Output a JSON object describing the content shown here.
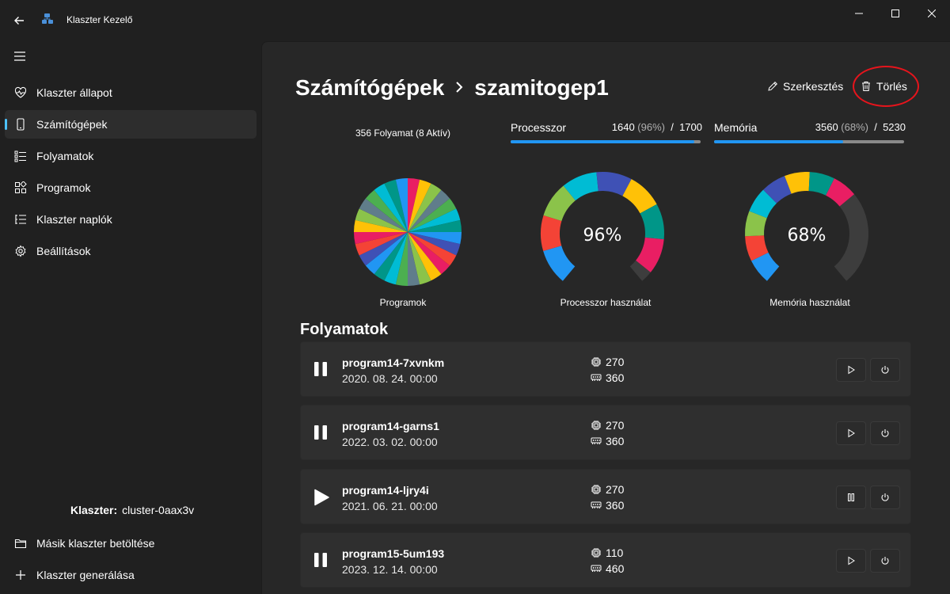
{
  "window": {
    "title": "Klaszter Kezelő"
  },
  "sidebar": {
    "items": [
      {
        "label": "Klaszter állapot",
        "icon": "heart-pulse-icon"
      },
      {
        "label": "Számítógépek",
        "icon": "phone-device-icon",
        "active": true
      },
      {
        "label": "Folyamatok",
        "icon": "list-icon"
      },
      {
        "label": "Programok",
        "icon": "apps-icon"
      },
      {
        "label": "Klaszter naplók",
        "icon": "log-list-icon"
      },
      {
        "label": "Beállítások",
        "icon": "gear-icon"
      }
    ],
    "cluster_label": "Klaszter:",
    "cluster_value": "cluster-0aax3v",
    "footer_items": [
      {
        "label": "Másik klaszter betöltése",
        "icon": "folder-icon"
      },
      {
        "label": "Klaszter generálása",
        "icon": "plus-icon"
      }
    ]
  },
  "header": {
    "breadcrumb_root": "Számítógépek",
    "breadcrumb_current": "szamitogep1",
    "edit_label": "Szerkesztés",
    "delete_label": "Törlés"
  },
  "stats": {
    "process_count": "356 Folyamat (8 Aktív)",
    "cpu": {
      "label": "Processzor",
      "used": "1640",
      "pct": "(96%)",
      "slash": "/",
      "total": "1700",
      "fraction": 0.965
    },
    "mem": {
      "label": "Memória",
      "used": "3560",
      "pct": "(68%)",
      "slash": "/",
      "total": "5230",
      "fraction": 0.68
    }
  },
  "chart_data": [
    {
      "type": "pie",
      "title": "Programok",
      "slices": 28,
      "colors": [
        "#e91e63",
        "#2196f3",
        "#4caf50",
        "#ffc107",
        "#3f51b5",
        "#00bcd4",
        "#8bc34a",
        "#f44336",
        "#009688",
        "#607d8b"
      ]
    },
    {
      "type": "gauge",
      "title": "Processzor használat",
      "value_label": "96%",
      "value": 96,
      "colors": [
        "#2196f3",
        "#f44336",
        "#8bc34a",
        "#00bcd4",
        "#3f51b5",
        "#ffc107",
        "#009688",
        "#e91e63"
      ]
    },
    {
      "type": "gauge",
      "title": "Memória használat",
      "value_label": "68%",
      "value": 68,
      "colors": [
        "#2196f3",
        "#f44336",
        "#8bc34a",
        "#00bcd4",
        "#3f51b5",
        "#ffc107",
        "#009688",
        "#e91e63"
      ]
    }
  ],
  "processes_section": {
    "title": "Folyamatok",
    "items": [
      {
        "name": "program14-7xvnkm",
        "date": "2020. 08. 24. 00:00",
        "cpu": "270",
        "mem": "360",
        "state": "paused"
      },
      {
        "name": "program14-garns1",
        "date": "2022. 03. 02. 00:00",
        "cpu": "270",
        "mem": "360",
        "state": "paused"
      },
      {
        "name": "program14-ljry4i",
        "date": "2021. 06. 21. 00:00",
        "cpu": "270",
        "mem": "360",
        "state": "running"
      },
      {
        "name": "program15-5um193",
        "date": "2023. 12. 14. 00:00",
        "cpu": "110",
        "mem": "460",
        "state": "paused"
      }
    ]
  }
}
